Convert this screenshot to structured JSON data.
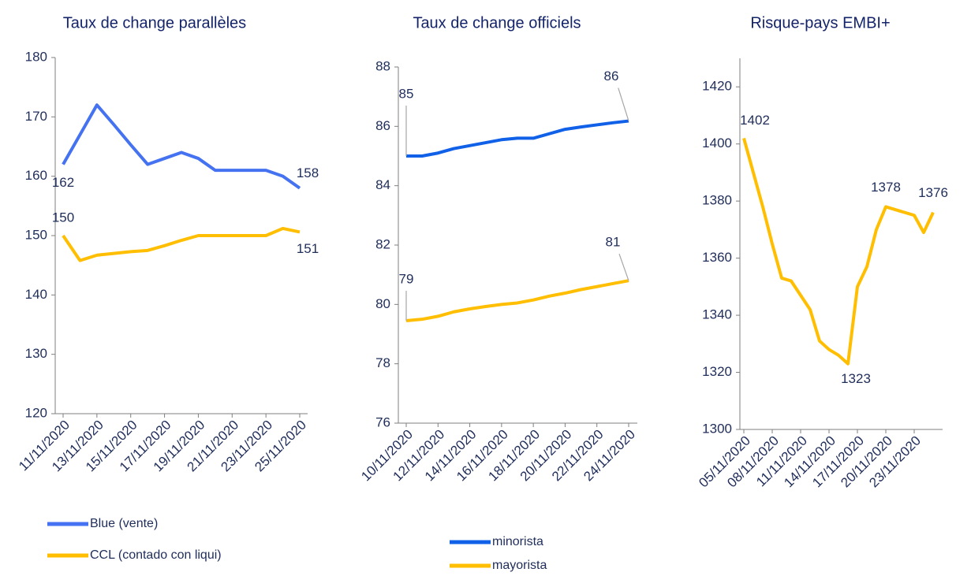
{
  "chart_data": [
    {
      "type": "line",
      "title": "Taux de change parallèles",
      "categories": [
        "11/11/2020",
        null,
        "13/11/2020",
        null,
        "15/11/2020",
        null,
        "17/11/2020",
        null,
        "19/11/2020",
        null,
        "21/11/2020",
        null,
        "23/11/2020",
        null,
        "25/11/2020"
      ],
      "series": [
        {
          "name": "Blue (vente)",
          "color": "#4472f0",
          "values": [
            162,
            167,
            172,
            168.7,
            165.3,
            162,
            163,
            164,
            163,
            161,
            161,
            161,
            161,
            160,
            158
          ],
          "value_labels": [
            "162",
            null,
            null,
            null,
            null,
            null,
            null,
            null,
            null,
            null,
            null,
            null,
            null,
            null,
            "158"
          ]
        },
        {
          "name": "CCL (contado con liqui)",
          "color": "#ffbe00",
          "values": [
            150,
            145.8,
            146.7,
            147,
            147.3,
            147.5,
            148.3,
            149.2,
            150,
            150,
            150,
            150,
            150,
            151.2,
            150.6
          ],
          "value_labels": [
            "150",
            null,
            null,
            null,
            null,
            null,
            null,
            null,
            null,
            null,
            null,
            null,
            null,
            null,
            "151"
          ]
        }
      ],
      "ylim": [
        120,
        180
      ],
      "yticks": [
        120,
        130,
        140,
        150,
        160,
        170,
        180
      ],
      "legend": "bottom"
    },
    {
      "type": "line",
      "title": "Taux de change officiels",
      "categories": [
        "10/11/2020",
        null,
        "12/11/2020",
        null,
        "14/11/2020",
        null,
        "16/11/2020",
        null,
        "18/11/2020",
        null,
        "20/11/2020",
        null,
        "22/11/2020",
        null,
        "24/11/2020"
      ],
      "series": [
        {
          "name": "minorista",
          "color": "#1060e8",
          "values": [
            85,
            85,
            85.1,
            85.25,
            85.35,
            85.45,
            85.55,
            85.6,
            85.6,
            85.75,
            85.9,
            85.98,
            86.05,
            86.12,
            86.18
          ],
          "value_labels": [
            "85",
            null,
            null,
            null,
            null,
            null,
            null,
            null,
            null,
            null,
            null,
            null,
            null,
            null,
            "86"
          ]
        },
        {
          "name": "mayorista",
          "color": "#ffbe00",
          "values": [
            79.45,
            79.5,
            79.6,
            79.75,
            79.85,
            79.93,
            80,
            80.05,
            80.15,
            80.28,
            80.38,
            80.5,
            80.6,
            80.7,
            80.8
          ],
          "value_labels": [
            "79",
            null,
            null,
            null,
            null,
            null,
            null,
            null,
            null,
            null,
            null,
            null,
            null,
            null,
            "81"
          ]
        }
      ],
      "ylim": [
        76,
        88
      ],
      "yticks": [
        76,
        78,
        80,
        82,
        84,
        86,
        88
      ],
      "legend": "bottom"
    },
    {
      "type": "line",
      "title": "Risque-pays EMBI+",
      "categories": [
        "05/11/2020",
        null,
        null,
        "08/11/2020",
        null,
        null,
        "11/11/2020",
        null,
        null,
        "14/11/2020",
        null,
        null,
        "17/11/2020",
        null,
        null,
        "20/11/2020",
        null,
        null,
        "23/11/2020",
        null,
        null
      ],
      "series": [
        {
          "color": "#ffbe00",
          "values": [
            1402,
            1390,
            1378,
            1365,
            1353,
            1352,
            1347,
            1342,
            1331,
            1328,
            1326,
            1323,
            1350,
            1357,
            1370,
            1378,
            1377,
            1376,
            1375,
            1369,
            1376
          ],
          "value_labels": [
            "1402",
            null,
            null,
            null,
            null,
            null,
            null,
            null,
            null,
            null,
            null,
            "1323",
            null,
            null,
            null,
            "1378",
            null,
            null,
            null,
            null,
            "1376"
          ]
        }
      ],
      "ylim": [
        1300,
        1430
      ],
      "yticks": [
        1300,
        1320,
        1340,
        1360,
        1380,
        1400,
        1420
      ]
    }
  ]
}
